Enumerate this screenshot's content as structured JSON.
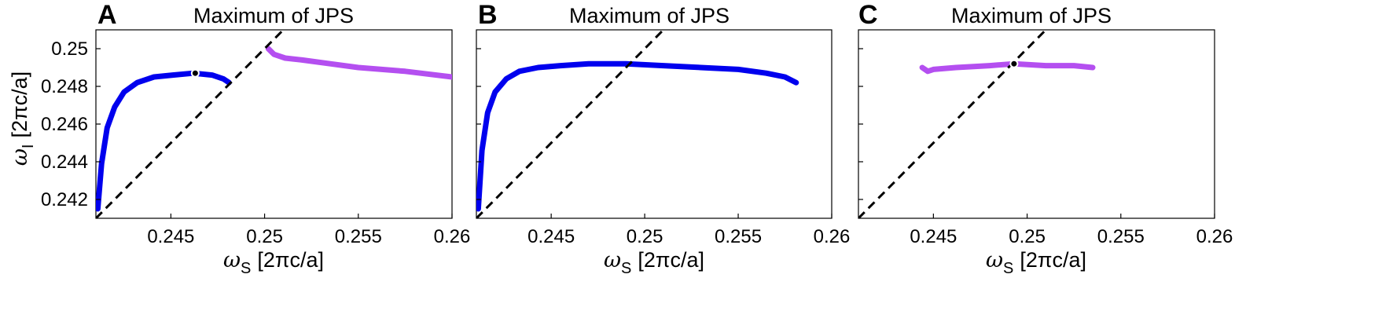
{
  "chart_data": [
    {
      "type": "line",
      "panel_label": "A",
      "title": "Maximum of JPS",
      "xlabel": {
        "symbol": "ω",
        "subscript": "S",
        "unit": "[2πc/a]"
      },
      "ylabel": {
        "symbol": "ω",
        "subscript": "I",
        "unit": "[2πc/a]"
      },
      "xlim": [
        0.241,
        0.26
      ],
      "ylim": [
        0.241,
        0.251
      ],
      "xticks": [
        0.245,
        0.25,
        0.255,
        0.26
      ],
      "xtick_labels": [
        "0.245",
        "0.25",
        "0.255",
        "0.26"
      ],
      "yticks": [
        0.242,
        0.244,
        0.246,
        0.248,
        0.25
      ],
      "ytick_labels": [
        "0.242",
        "0.244",
        "0.246",
        "0.248",
        "0.25"
      ],
      "grid": false,
      "series": [
        {
          "color": "#0000ee",
          "x": [
            0.2411,
            0.2413,
            0.2416,
            0.242,
            0.2425,
            0.2432,
            0.2441,
            0.2451,
            0.2462,
            0.2472,
            0.2478,
            0.2481
          ],
          "y": [
            0.2415,
            0.2439,
            0.2458,
            0.2469,
            0.2477,
            0.2482,
            0.2485,
            0.2486,
            0.2487,
            0.2486,
            0.2484,
            0.2482
          ]
        },
        {
          "color": "#b44ff0",
          "x": [
            0.2502,
            0.2505,
            0.2511,
            0.252,
            0.2535,
            0.255,
            0.2575,
            0.26
          ],
          "y": [
            0.25,
            0.2497,
            0.2495,
            0.2494,
            0.2492,
            0.249,
            0.2488,
            0.2485
          ]
        },
        {
          "color": "#000000",
          "dashed": true,
          "x": [
            0.241,
            0.251
          ],
          "y": [
            0.241,
            0.251
          ]
        }
      ],
      "markers": [
        {
          "x": 0.2463,
          "y": 0.2487
        }
      ]
    },
    {
      "type": "line",
      "panel_label": "B",
      "title": "Maximum of JPS",
      "xlabel": {
        "symbol": "ω",
        "subscript": "S",
        "unit": "[2πc/a]"
      },
      "xlim": [
        0.241,
        0.26
      ],
      "ylim": [
        0.241,
        0.251
      ],
      "xticks": [
        0.245,
        0.25,
        0.255,
        0.26
      ],
      "xtick_labels": [
        "0.245",
        "0.25",
        "0.255",
        "0.26"
      ],
      "grid": false,
      "series": [
        {
          "color": "#0000ee",
          "x": [
            0.2411,
            0.2413,
            0.2416,
            0.242,
            0.2426,
            0.2433,
            0.2443,
            0.2455,
            0.247,
            0.249,
            0.251,
            0.253,
            0.255,
            0.2565,
            0.2575,
            0.2581
          ],
          "y": [
            0.2415,
            0.2446,
            0.2466,
            0.2477,
            0.2484,
            0.2488,
            0.249,
            0.2491,
            0.2492,
            0.2492,
            0.2491,
            0.249,
            0.2489,
            0.2487,
            0.2485,
            0.2482
          ]
        },
        {
          "color": "#000000",
          "dashed": true,
          "x": [
            0.241,
            0.251
          ],
          "y": [
            0.241,
            0.251
          ]
        }
      ],
      "markers": []
    },
    {
      "type": "line",
      "panel_label": "C",
      "title": "Maximum of JPS",
      "xlabel": {
        "symbol": "ω",
        "subscript": "S",
        "unit": "[2πc/a]"
      },
      "xlim": [
        0.241,
        0.26
      ],
      "ylim": [
        0.241,
        0.251
      ],
      "xticks": [
        0.245,
        0.25,
        0.255,
        0.26
      ],
      "xtick_labels": [
        "0.245",
        "0.25",
        "0.255",
        "0.26"
      ],
      "grid": false,
      "series": [
        {
          "color": "#b44ff0",
          "x": [
            0.2444,
            0.2447,
            0.245,
            0.2462,
            0.248,
            0.2493,
            0.251,
            0.2525,
            0.2535
          ],
          "y": [
            0.249,
            0.2488,
            0.2489,
            0.249,
            0.2491,
            0.2492,
            0.2491,
            0.2491,
            0.249
          ]
        },
        {
          "color": "#000000",
          "dashed": true,
          "x": [
            0.241,
            0.251
          ],
          "y": [
            0.241,
            0.251
          ]
        }
      ],
      "markers": [
        {
          "x": 0.2493,
          "y": 0.2492
        }
      ]
    }
  ]
}
